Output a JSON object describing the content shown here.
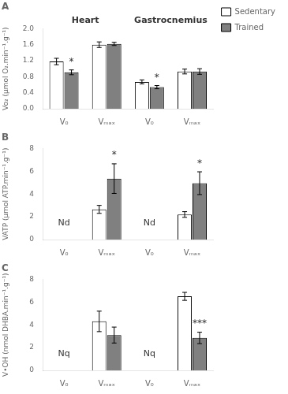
{
  "chart_data": [
    {
      "type": "bar",
      "title": "A",
      "y_label": "Vo₂ (µmol O₂.min⁻¹.g⁻¹)",
      "categories": [
        "V₀",
        "Vₘₐₓ",
        "V₀",
        "Vₘₐₓ"
      ],
      "series": [
        {
          "name": "Sedentary",
          "color": "#ffffff",
          "values": [
            1.18,
            1.6,
            0.67,
            0.93
          ],
          "errors": [
            0.08,
            0.07,
            0.05,
            0.06
          ]
        },
        {
          "name": "Trained",
          "color": "#808080",
          "values": [
            0.91,
            1.62,
            0.54,
            0.93
          ],
          "errors": [
            0.06,
            0.04,
            0.04,
            0.07
          ]
        }
      ],
      "ylim": [
        0,
        2.0
      ],
      "yticks": [
        {
          "value": 0,
          "label": "0.0"
        },
        0.4,
        0.8,
        1.2,
        1.6,
        {
          "value": 2.0,
          "label": "2.0"
        }
      ],
      "annotations": [
        {
          "text": "Heart",
          "indices": [
            0,
            1
          ]
        },
        {
          "text": "Gastrocnemius",
          "indices": [
            2,
            3
          ]
        },
        {
          "text": "*",
          "series": "Trained",
          "index": 0
        },
        {
          "text": "*",
          "series": "Trained",
          "index": 2
        }
      ],
      "grid": false,
      "legend": "right"
    },
    {
      "type": "bar",
      "title": "B",
      "y_label": "VATP (µmol ATP.min⁻¹.g⁻¹)",
      "categories": [
        "V₀",
        "Vₘₐₓ",
        "V₀",
        "Vₘₐₓ"
      ],
      "series": [
        {
          "name": "Sedentary",
          "color": "#ffffff",
          "values": [
            null,
            2.65,
            null,
            2.2
          ],
          "errors": [
            null,
            0.35,
            null,
            0.25
          ]
        },
        {
          "name": "Trained",
          "color": "#808080",
          "values": [
            null,
            5.35,
            null,
            4.95
          ],
          "errors": [
            null,
            1.3,
            null,
            1.0
          ]
        }
      ],
      "ylim": [
        0,
        8
      ],
      "yticks": [
        0,
        2,
        4,
        6,
        8
      ],
      "annotations": [
        {
          "text": "*",
          "series": "Trained",
          "index": 1
        },
        {
          "text": "*",
          "series": "Trained",
          "index": 3
        },
        {
          "text": "Nd",
          "index": 0
        },
        {
          "text": "Nd",
          "index": 2
        }
      ],
      "grid": false,
      "legend": false
    },
    {
      "type": "bar",
      "title": "C",
      "y_label": "V•OH (nmol DHBA.min⁻¹.g⁻¹)",
      "categories": [
        "V₀",
        "Vₘₐₓ",
        "V₀",
        "Vₘₐₓ"
      ],
      "series": [
        {
          "name": "Sedentary",
          "color": "#ffffff",
          "values": [
            null,
            4.3,
            null,
            6.5
          ],
          "errors": [
            null,
            0.9,
            null,
            0.35
          ]
        },
        {
          "name": "Trained",
          "color": "#808080",
          "values": [
            null,
            3.1,
            null,
            2.85
          ],
          "errors": [
            null,
            0.7,
            null,
            0.5
          ]
        }
      ],
      "ylim": [
        0,
        8
      ],
      "yticks": [
        0,
        2,
        4,
        6,
        8
      ],
      "annotations": [
        {
          "text": "***",
          "series": "Trained",
          "index": 3
        },
        {
          "text": "Nq",
          "index": 0
        },
        {
          "text": "Nq",
          "index": 2
        }
      ],
      "grid": false,
      "legend": false
    }
  ]
}
